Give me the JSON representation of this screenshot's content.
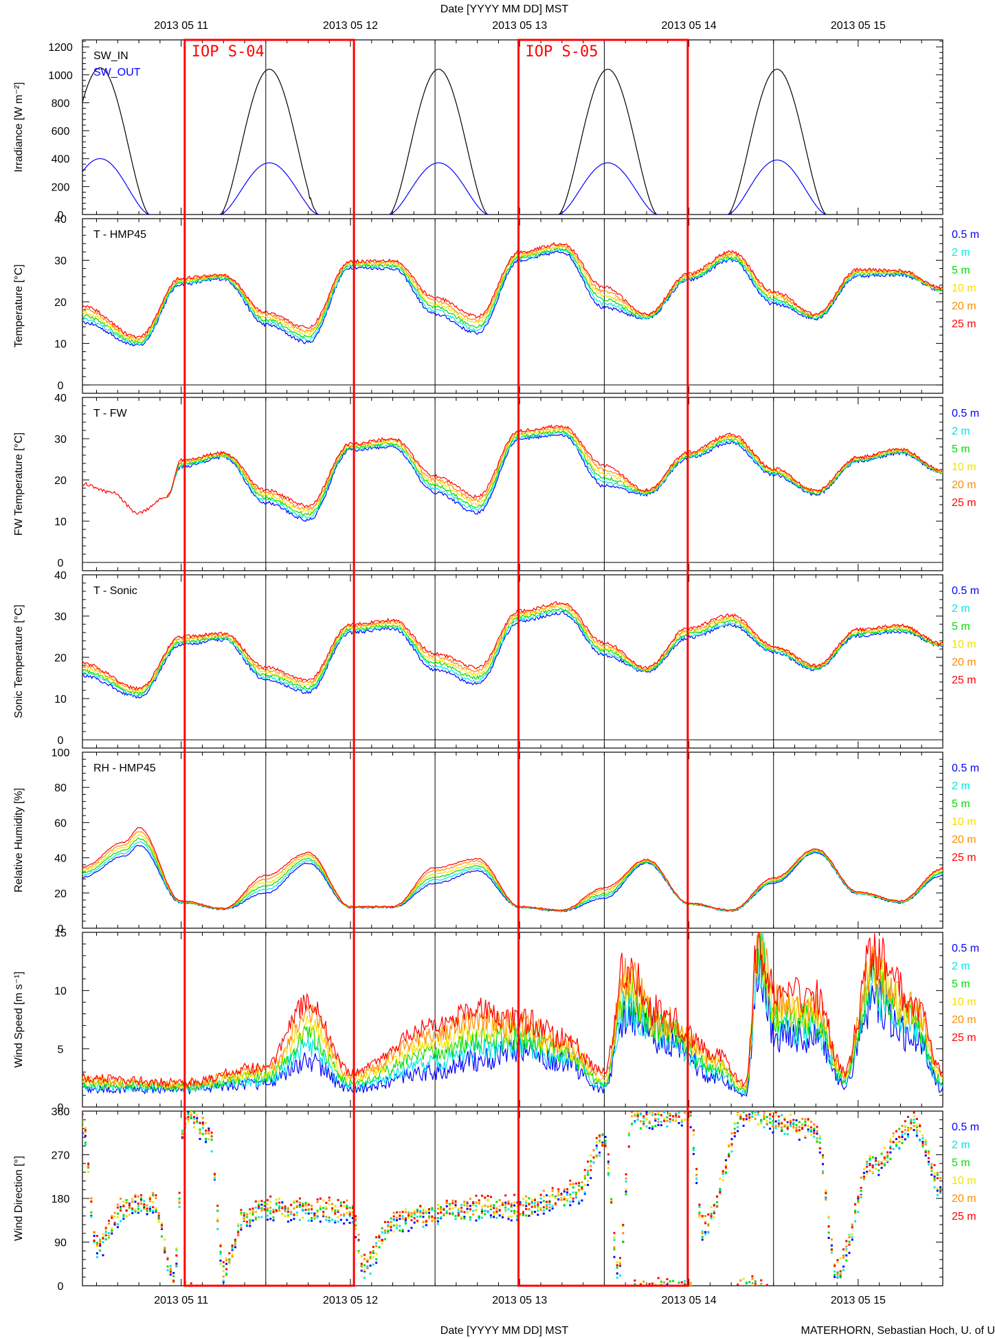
{
  "figure": {
    "top_axis_title": "Date [YYYY MM DD] MST",
    "bottom_axis_title": "Date [YYYY MM DD] MST",
    "credit": "MATERHORN, Sebastian Hoch, U. of U"
  },
  "chart_data": {
    "type": "line",
    "x_axis": {
      "type": "date",
      "range": [
        "2013-05-10 10:00",
        "2013-05-15 12:00"
      ],
      "tick_labels": [
        "2013 05 11",
        "2013 05 12",
        "2013 05 13",
        "2013 05 14",
        "2013 05 15"
      ],
      "tick_dates": [
        "2013-05-11 00:00",
        "2013-05-12 00:00",
        "2013-05-13 00:00",
        "2013-05-14 00:00",
        "2013-05-15 00:00"
      ],
      "gridlines": [
        "2013-05-11 12:00",
        "2013-05-12 12:00",
        "2013-05-13 12:00",
        "2013-05-14 12:00"
      ]
    },
    "annotations": [
      {
        "label": "IOP S-04",
        "start": "2013-05-11 00:30",
        "end": "2013-05-12 00:30",
        "color": "#ff0000"
      },
      {
        "label": "IOP S-05",
        "start": "2013-05-12 23:50",
        "end": "2013-05-13 23:50",
        "color": "#ff0000"
      }
    ],
    "level_legend": [
      {
        "name": "0.5 m",
        "color": "#0000ff"
      },
      {
        "name": "2 m",
        "color": "#00e5e5"
      },
      {
        "name": "5 m",
        "color": "#00dd00"
      },
      {
        "name": "10 m",
        "color": "#f5e000"
      },
      {
        "name": "20 m",
        "color": "#ff8c00"
      },
      {
        "name": "25 m",
        "color": "#ff0000"
      }
    ],
    "panels": [
      {
        "id": "irradiance",
        "title": "",
        "ylabel": "Irradiance [W m⁻²]",
        "ylim": [
          0,
          1250
        ],
        "yticks": [
          0,
          200,
          400,
          600,
          800,
          1000,
          1200
        ],
        "legend": [
          {
            "name": "SW_IN",
            "color": "#000000"
          },
          {
            "name": "SW_OUT",
            "color": "#0000ff"
          }
        ],
        "series": [
          {
            "name": "SW_IN",
            "color": "#000000",
            "kind": "solar",
            "days": [
              {
                "date": "2013-05-10",
                "peak": 1050,
                "cloudy_from": "2013-05-11 00:40",
                "cloud_depth": 0.6
              },
              {
                "date": "2013-05-11",
                "peak": 1040,
                "cloudy_from": "2013-05-11 18:00",
                "cloud_depth": 0.15
              },
              {
                "date": "2013-05-12",
                "peak": 1040,
                "cloudy_from": "2013-05-13 02:30",
                "cloud_depth": 0.7
              },
              {
                "date": "2013-05-13",
                "peak": 1040,
                "cloudy_from": "2013-05-14 02:30",
                "cloud_depth": 0.6
              },
              {
                "date": "2013-05-14",
                "peak": 1040,
                "cloudy_from": "2013-05-15 02:30",
                "cloud_depth": 0.6
              }
            ]
          },
          {
            "name": "SW_OUT",
            "color": "#0000ff",
            "kind": "solar",
            "days": [
              {
                "date": "2013-05-10",
                "peak": 400,
                "cloudy_from": "2013-05-11 00:40",
                "cloud_depth": 0.6
              },
              {
                "date": "2013-05-11",
                "peak": 370,
                "cloudy_from": "2013-05-11 18:00",
                "cloud_depth": 0.15
              },
              {
                "date": "2013-05-12",
                "peak": 370,
                "cloudy_from": "2013-05-13 02:30",
                "cloud_depth": 0.7
              },
              {
                "date": "2013-05-13",
                "peak": 370,
                "cloudy_from": "2013-05-14 02:30",
                "cloud_depth": 0.6
              },
              {
                "date": "2013-05-14",
                "peak": 390,
                "cloudy_from": "2013-05-15 02:30",
                "cloud_depth": 0.6
              }
            ]
          }
        ]
      },
      {
        "id": "temp-hmp45",
        "title": "T - HMP45",
        "ylabel": "Temperature [°C]",
        "ylim": [
          -2,
          40
        ],
        "yticks": [
          0,
          10,
          20,
          30,
          40
        ],
        "zero_line": true,
        "show_levels": true,
        "keypoints": [
          [
            "2013-05-10 10:00",
            17,
            4
          ],
          [
            "2013-05-10 18:00",
            10.5,
            2
          ],
          [
            "2013-05-11 00:00",
            25,
            1.5
          ],
          [
            "2013-05-11 06:00",
            26,
            1
          ],
          [
            "2013-05-11 12:00",
            16,
            3
          ],
          [
            "2013-05-11 18:00",
            12,
            3.5
          ],
          [
            "2013-05-12 00:00",
            29,
            1.5
          ],
          [
            "2013-05-12 06:00",
            29,
            2
          ],
          [
            "2013-05-12 12:00",
            19,
            4
          ],
          [
            "2013-05-12 18:00",
            14.5,
            4
          ],
          [
            "2013-05-13 00:00",
            31,
            2
          ],
          [
            "2013-05-13 06:00",
            33,
            2
          ],
          [
            "2013-05-13 12:00",
            21,
            5
          ],
          [
            "2013-05-13 18:00",
            16.5,
            1
          ],
          [
            "2013-05-14 00:00",
            26,
            1.5
          ],
          [
            "2013-05-14 06:00",
            31,
            2
          ],
          [
            "2013-05-14 12:00",
            21,
            3
          ],
          [
            "2013-05-14 18:00",
            16.5,
            1
          ],
          [
            "2013-05-15 00:00",
            27,
            1.5
          ],
          [
            "2013-05-15 06:00",
            27,
            1
          ],
          [
            "2013-05-15 12:00",
            23,
            0.5
          ]
        ]
      },
      {
        "id": "temp-fw",
        "title": "T - FW",
        "ylabel": "FW Temperature [°C]",
        "ylim": [
          -2,
          40
        ],
        "yticks": [
          0,
          10,
          20,
          30,
          40
        ],
        "zero_line": true,
        "show_levels": true,
        "single_level_until": "2013-05-10 22:00",
        "keypoints": [
          [
            "2013-05-10 10:00",
            19,
            0
          ],
          [
            "2013-05-10 14:00",
            17,
            0
          ],
          [
            "2013-05-10 18:00",
            12,
            0
          ],
          [
            "2013-05-10 22:00",
            16,
            0
          ],
          [
            "2013-05-11 00:00",
            24,
            1.5
          ],
          [
            "2013-05-11 06:00",
            26,
            1
          ],
          [
            "2013-05-11 12:00",
            16,
            3
          ],
          [
            "2013-05-11 18:00",
            12,
            3.5
          ],
          [
            "2013-05-12 00:00",
            28,
            1.5
          ],
          [
            "2013-05-12 06:00",
            29,
            2
          ],
          [
            "2013-05-12 12:00",
            19,
            4
          ],
          [
            "2013-05-12 18:00",
            14,
            4
          ],
          [
            "2013-05-13 00:00",
            31,
            2
          ],
          [
            "2013-05-13 06:00",
            32,
            2
          ],
          [
            "2013-05-13 12:00",
            21,
            5
          ],
          [
            "2013-05-13 18:00",
            17,
            1
          ],
          [
            "2013-05-14 00:00",
            26,
            1.5
          ],
          [
            "2013-05-14 06:00",
            30,
            2
          ],
          [
            "2013-05-14 12:00",
            22,
            1.5
          ],
          [
            "2013-05-14 18:00",
            17,
            1
          ],
          [
            "2013-05-15 00:00",
            25,
            1
          ],
          [
            "2013-05-15 06:00",
            27,
            1
          ],
          [
            "2013-05-15 12:00",
            22,
            0.5
          ]
        ]
      },
      {
        "id": "temp-sonic",
        "title": "T - Sonic",
        "ylabel": "Sonic Temperature [°C]",
        "ylim": [
          -2,
          40
        ],
        "yticks": [
          0,
          10,
          20,
          30,
          40
        ],
        "zero_line": true,
        "show_levels": true,
        "keypoints": [
          [
            "2013-05-10 10:00",
            17,
            3
          ],
          [
            "2013-05-10 18:00",
            11.5,
            2
          ],
          [
            "2013-05-11 00:00",
            24,
            2
          ],
          [
            "2013-05-11 06:00",
            25,
            1.5
          ],
          [
            "2013-05-11 12:00",
            16,
            3
          ],
          [
            "2013-05-11 18:00",
            13,
            3
          ],
          [
            "2013-05-12 00:00",
            27,
            2
          ],
          [
            "2013-05-12 06:00",
            28,
            2
          ],
          [
            "2013-05-12 12:00",
            19,
            4
          ],
          [
            "2013-05-12 18:00",
            15.5,
            4
          ],
          [
            "2013-05-13 00:00",
            30,
            2.5
          ],
          [
            "2013-05-13 06:00",
            32,
            2.5
          ],
          [
            "2013-05-13 12:00",
            22,
            3
          ],
          [
            "2013-05-13 18:00",
            17,
            1
          ],
          [
            "2013-05-14 00:00",
            26,
            2.5
          ],
          [
            "2013-05-14 06:00",
            29,
            2.5
          ],
          [
            "2013-05-14 12:00",
            22,
            1.5
          ],
          [
            "2013-05-14 18:00",
            17.5,
            1
          ],
          [
            "2013-05-15 00:00",
            26,
            1.5
          ],
          [
            "2013-05-15 06:00",
            27,
            1.5
          ],
          [
            "2013-05-15 12:00",
            23,
            0.5
          ]
        ]
      },
      {
        "id": "rh-hmp45",
        "title": "RH - HMP45",
        "ylabel": "Relative Humidity [%]",
        "ylim": [
          0,
          100
        ],
        "yticks": [
          0,
          20,
          40,
          60,
          80,
          100
        ],
        "show_levels": true,
        "keypoints": [
          [
            "2013-05-10 10:00",
            32,
            6
          ],
          [
            "2013-05-10 16:00",
            45,
            8
          ],
          [
            "2013-05-10 18:00",
            52,
            10
          ],
          [
            "2013-05-11 00:00",
            15,
            1
          ],
          [
            "2013-05-11 06:00",
            11,
            0.5
          ],
          [
            "2013-05-11 12:00",
            25,
            10
          ],
          [
            "2013-05-11 18:00",
            40,
            6
          ],
          [
            "2013-05-12 00:00",
            12,
            0.5
          ],
          [
            "2013-05-12 06:00",
            12,
            0.5
          ],
          [
            "2013-05-12 12:00",
            30,
            9
          ],
          [
            "2013-05-12 18:00",
            36,
            7
          ],
          [
            "2013-05-13 00:00",
            12,
            0.5
          ],
          [
            "2013-05-13 06:00",
            10,
            0.5
          ],
          [
            "2013-05-13 12:00",
            20,
            6
          ],
          [
            "2013-05-13 18:00",
            38,
            2
          ],
          [
            "2013-05-14 00:00",
            14,
            0.5
          ],
          [
            "2013-05-14 06:00",
            10,
            0.5
          ],
          [
            "2013-05-14 12:00",
            27,
            3
          ],
          [
            "2013-05-14 18:00",
            44,
            2
          ],
          [
            "2013-05-15 00:00",
            20,
            1
          ],
          [
            "2013-05-15 06:00",
            15,
            1
          ],
          [
            "2013-05-15 12:00",
            32,
            4
          ]
        ]
      },
      {
        "id": "wind-speed",
        "title": "",
        "ylabel": "Wind Speed [m s⁻¹]",
        "ylim": [
          0,
          15
        ],
        "yticks": [
          0,
          5,
          10,
          15
        ],
        "show_levels": true,
        "noise": 0.25,
        "keypoints": [
          [
            "2013-05-10 10:00",
            1.5,
            1
          ],
          [
            "2013-05-11 00:00",
            1.5,
            0.6
          ],
          [
            "2013-05-11 12:00",
            2,
            1.5
          ],
          [
            "2013-05-11 18:00",
            4,
            5
          ],
          [
            "2013-05-12 00:00",
            1.5,
            1.5
          ],
          [
            "2013-05-12 12:00",
            3,
            4
          ],
          [
            "2013-05-12 18:00",
            4,
            4.5
          ],
          [
            "2013-05-13 00:00",
            5,
            2.5
          ],
          [
            "2013-05-13 06:00",
            4,
            2
          ],
          [
            "2013-05-13 12:00",
            1.5,
            1.5
          ],
          [
            "2013-05-13 15:00",
            8,
            4
          ],
          [
            "2013-05-13 20:00",
            6,
            2
          ],
          [
            "2013-05-14 04:00",
            2.5,
            2
          ],
          [
            "2013-05-14 08:00",
            1,
            1
          ],
          [
            "2013-05-14 10:00",
            13,
            2
          ],
          [
            "2013-05-14 12:00",
            6,
            4
          ],
          [
            "2013-05-14 18:00",
            6,
            3.5
          ],
          [
            "2013-05-14 22:00",
            2,
            1
          ],
          [
            "2013-05-15 02:00",
            9,
            4
          ],
          [
            "2013-05-15 08:00",
            6,
            3
          ],
          [
            "2013-05-15 12:00",
            1.5,
            1.5
          ]
        ]
      },
      {
        "id": "wind-direction",
        "title": "",
        "ylabel": "Wind Direction [°]",
        "ylim": [
          0,
          360
        ],
        "yticks": [
          0,
          90,
          180,
          270,
          360
        ],
        "show_levels": true,
        "kind": "dots",
        "keypoints": [
          [
            "2013-05-10 10:00",
            340
          ],
          [
            "2013-05-10 12:00",
            80
          ],
          [
            "2013-05-10 16:00",
            160
          ],
          [
            "2013-05-10 20:00",
            170
          ],
          [
            "2013-05-10 23:00",
            20
          ],
          [
            "2013-05-11 00:30",
            350
          ],
          [
            "2013-05-11 04:00",
            320
          ],
          [
            "2013-05-11 06:00",
            30
          ],
          [
            "2013-05-11 09:00",
            140
          ],
          [
            "2013-05-11 12:00",
            160
          ],
          [
            "2013-05-12 00:00",
            155
          ],
          [
            "2013-05-12 02:00",
            40
          ],
          [
            "2013-05-12 06:00",
            130
          ],
          [
            "2013-05-12 10:00",
            145
          ],
          [
            "2013-05-12 18:00",
            160
          ],
          [
            "2013-05-13 00:00",
            160
          ],
          [
            "2013-05-13 08:00",
            190
          ],
          [
            "2013-05-13 12:00",
            300
          ],
          [
            "2013-05-13 14:00",
            30
          ],
          [
            "2013-05-13 16:00",
            345
          ],
          [
            "2013-05-13 20:00",
            350
          ],
          [
            "2013-05-14 00:00",
            355
          ],
          [
            "2013-05-14 02:00",
            120
          ],
          [
            "2013-05-14 08:00",
            355
          ],
          [
            "2013-05-14 12:00",
            340
          ],
          [
            "2013-05-14 18:00",
            320
          ],
          [
            "2013-05-14 21:00",
            30
          ],
          [
            "2013-05-15 02:00",
            250
          ],
          [
            "2013-05-15 08:00",
            330
          ],
          [
            "2013-05-15 12:00",
            200
          ]
        ]
      }
    ]
  }
}
